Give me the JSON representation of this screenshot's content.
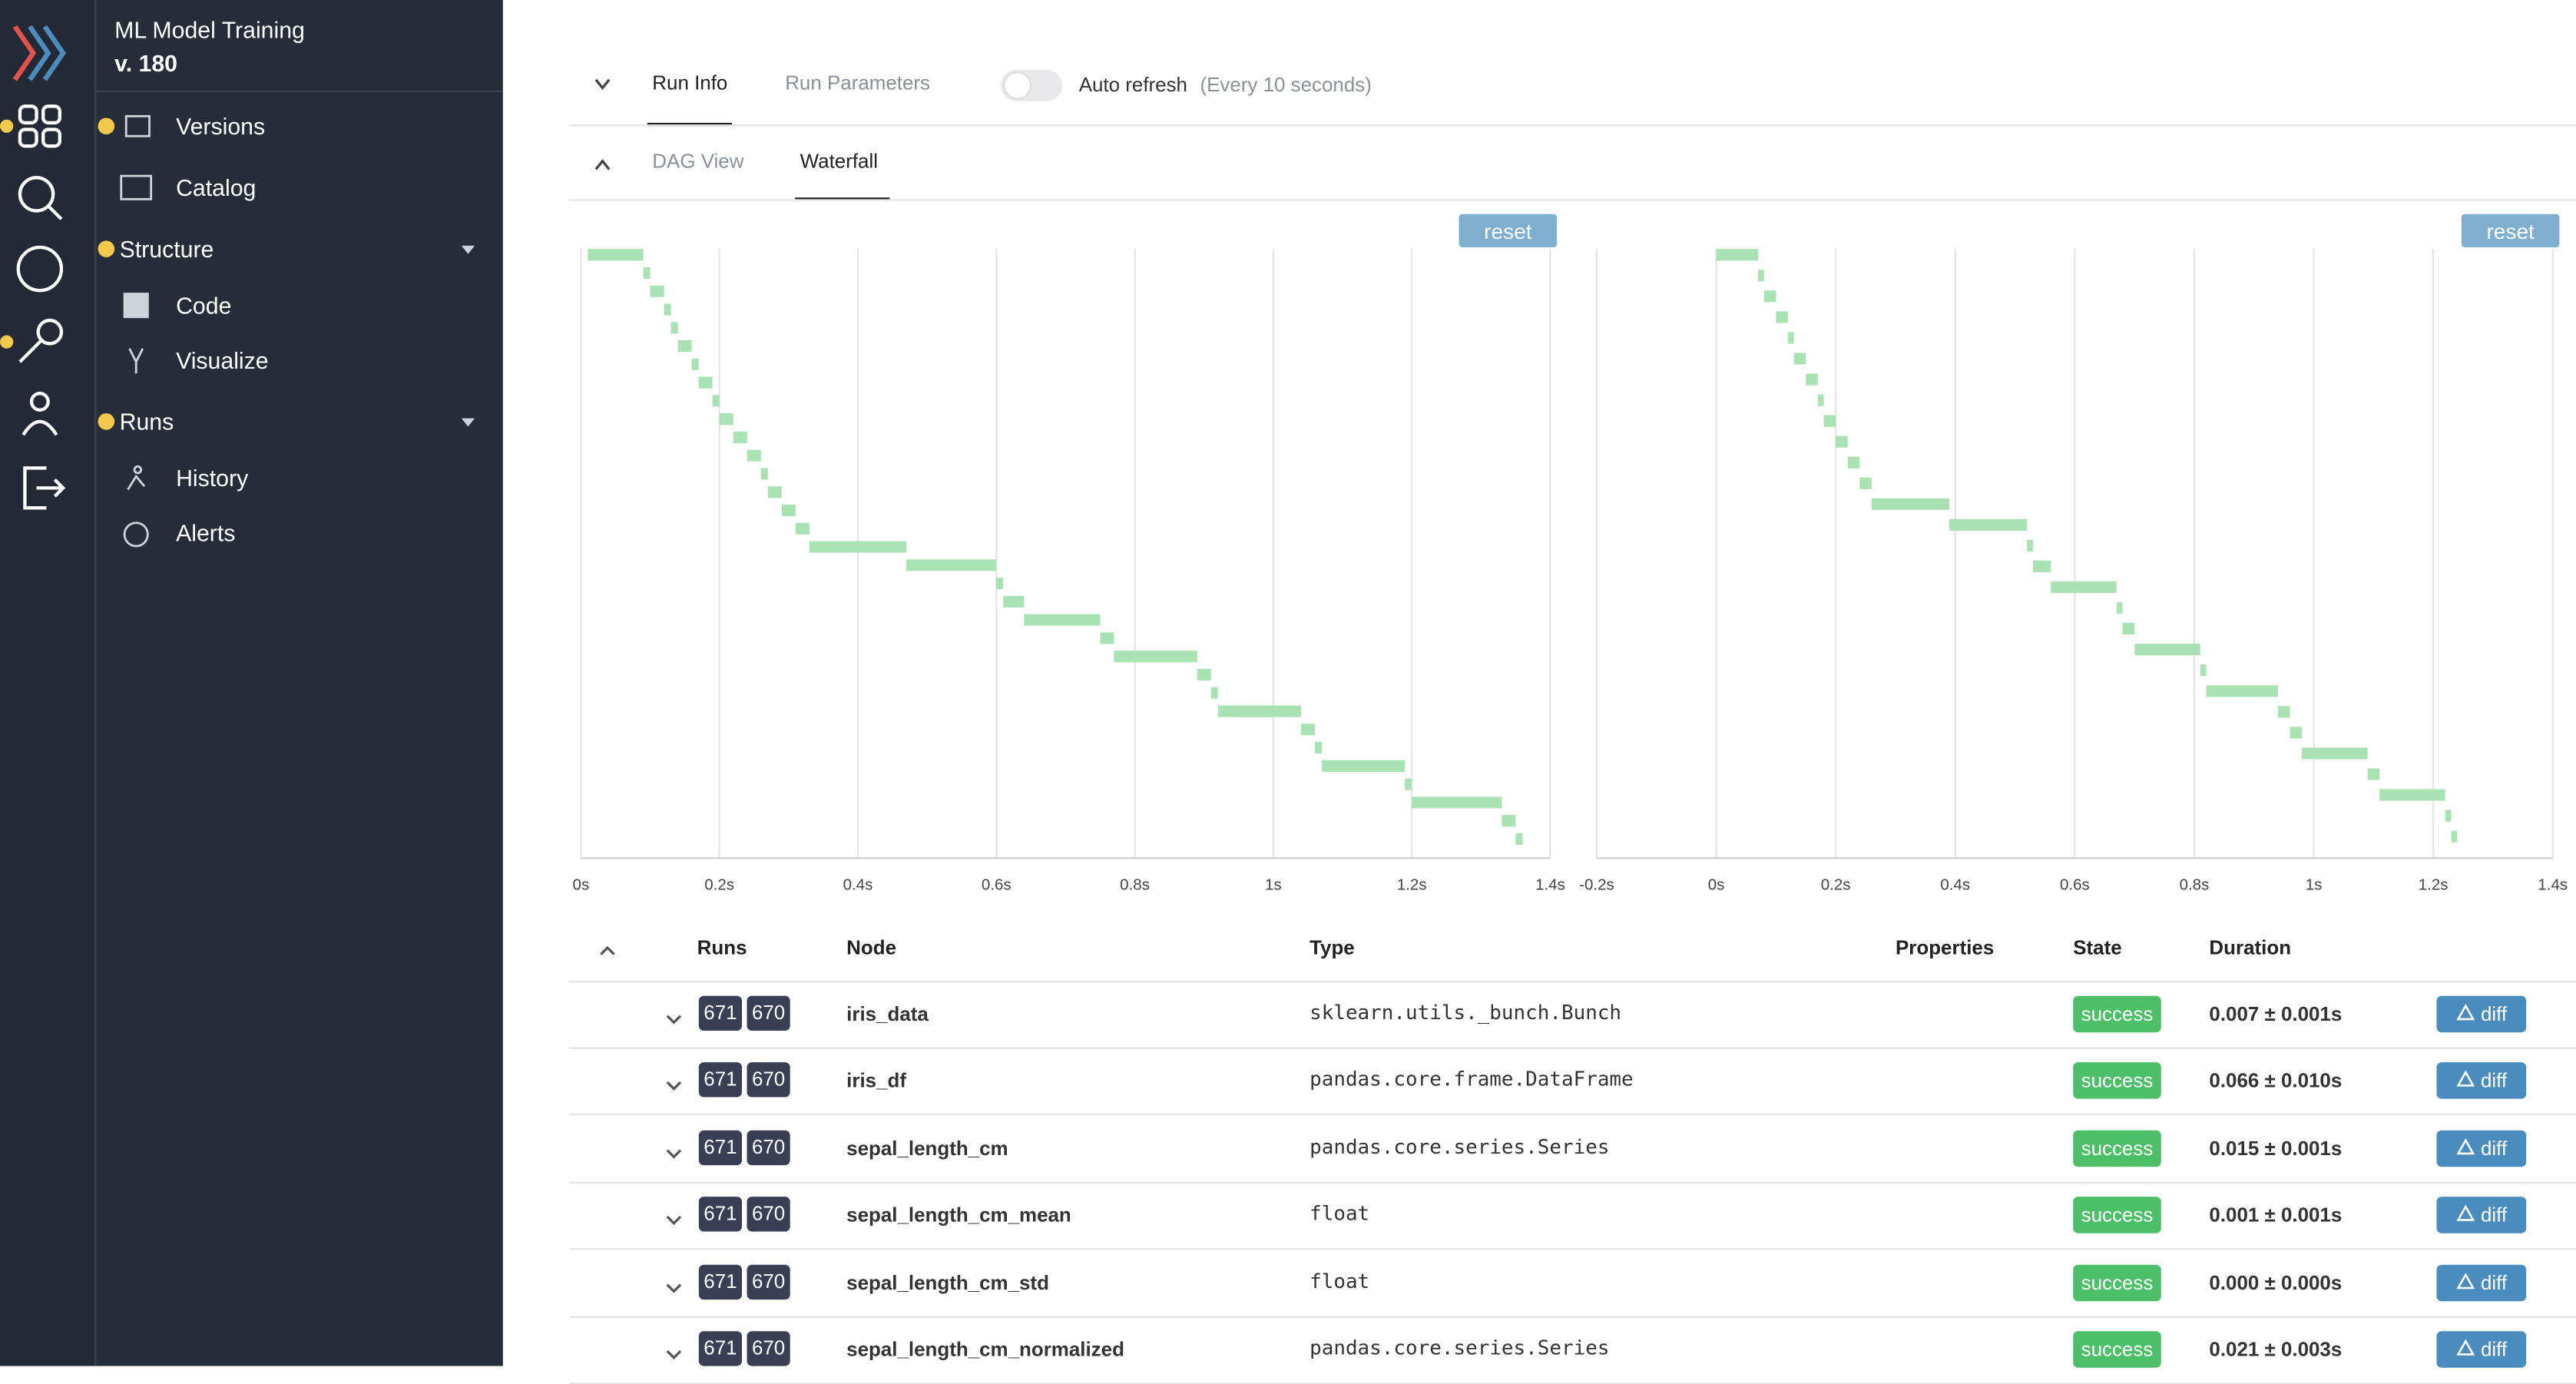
{
  "sidebar": {
    "title": "ML Model Training",
    "version": "v. 180",
    "items": [
      "Versions",
      "Catalog",
      "Structure",
      "Code",
      "Visualize",
      "Runs",
      "History",
      "Alerts"
    ]
  },
  "tabs": {
    "top": [
      "Run Info",
      "Run Parameters"
    ],
    "auto_refresh": "Auto refresh",
    "auto_refresh_note": "(Every 10 seconds)",
    "views": [
      "DAG View",
      "Waterfall"
    ],
    "reset": "reset"
  },
  "chart_data": [
    {
      "type": "waterfall",
      "color": "#a9e2b3",
      "grid": true,
      "xlim": [
        0,
        1.4
      ],
      "xticks": [
        {
          "value": 0,
          "label": "0s"
        },
        {
          "value": 0.2,
          "label": "0.2s"
        },
        {
          "value": 0.4,
          "label": "0.4s"
        },
        {
          "value": 0.6,
          "label": "0.6s"
        },
        {
          "value": 0.8,
          "label": "0.8s"
        },
        {
          "value": 1,
          "label": "1s"
        },
        {
          "value": 1.2,
          "label": "1.2s"
        },
        {
          "value": 1.4,
          "label": "1.4s"
        }
      ],
      "starts": [
        0.01,
        0.09,
        0.1,
        0.12,
        0.13,
        0.14,
        0.16,
        0.17,
        0.19,
        0.2,
        0.22,
        0.24,
        0.26,
        0.27,
        0.29,
        0.31,
        0.33,
        0.47,
        0.6,
        0.61,
        0.64,
        0.75,
        0.77,
        0.89,
        0.91,
        0.92,
        1.04,
        1.06,
        1.07,
        1.19,
        1.2,
        1.33,
        1.35
      ],
      "ends": [
        0.09,
        0.1,
        0.12,
        0.13,
        0.14,
        0.16,
        0.17,
        0.19,
        0.2,
        0.22,
        0.24,
        0.26,
        0.27,
        0.29,
        0.31,
        0.33,
        0.47,
        0.6,
        0.61,
        0.64,
        0.75,
        0.77,
        0.89,
        0.91,
        0.92,
        1.04,
        1.06,
        1.07,
        1.19,
        1.2,
        1.33,
        1.35,
        1.36
      ]
    },
    {
      "type": "waterfall",
      "color": "#a9e2b3",
      "grid": true,
      "xlim": [
        -0.2,
        1.4
      ],
      "xticks": [
        {
          "value": -0.2,
          "label": "-0.2s"
        },
        {
          "value": 0,
          "label": "0s"
        },
        {
          "value": 0.2,
          "label": "0.2s"
        },
        {
          "value": 0.4,
          "label": "0.4s"
        },
        {
          "value": 0.6,
          "label": "0.6s"
        },
        {
          "value": 0.8,
          "label": "0.8s"
        },
        {
          "value": 1,
          "label": "1s"
        },
        {
          "value": 1.2,
          "label": "1.2s"
        },
        {
          "value": 1.4,
          "label": "1.4s"
        }
      ],
      "starts": [
        0,
        0.07,
        0.08,
        0.1,
        0.12,
        0.13,
        0.15,
        0.17,
        0.18,
        0.2,
        0.22,
        0.24,
        0.26,
        0.39,
        0.52,
        0.53,
        0.56,
        0.67,
        0.68,
        0.7,
        0.81,
        0.82,
        0.94,
        0.96,
        0.98,
        1.09,
        1.11,
        1.22,
        1.23
      ],
      "ends": [
        0.07,
        0.08,
        0.1,
        0.12,
        0.13,
        0.15,
        0.17,
        0.18,
        0.2,
        0.22,
        0.24,
        0.26,
        0.39,
        0.52,
        0.53,
        0.56,
        0.67,
        0.68,
        0.7,
        0.81,
        0.82,
        0.94,
        0.96,
        0.98,
        1.09,
        1.11,
        1.22,
        1.23,
        1.24
      ]
    }
  ],
  "table": {
    "headers": [
      "Runs",
      "Node",
      "Type",
      "Properties",
      "State",
      "Duration"
    ],
    "rows": [
      {
        "runs": [
          671,
          670
        ],
        "node": "iris_data",
        "type": "sklearn.utils._bunch.Bunch",
        "state": "success",
        "duration": "0.007 ± 0.001s",
        "action": "diff"
      },
      {
        "runs": [
          671,
          670
        ],
        "node": "iris_df",
        "type": "pandas.core.frame.DataFrame",
        "state": "success",
        "duration": "0.066 ± 0.010s",
        "action": "diff"
      },
      {
        "runs": [
          671,
          670
        ],
        "node": "sepal_length_cm",
        "type": "pandas.core.series.Series",
        "state": "success",
        "duration": "0.015 ± 0.001s",
        "action": "diff"
      },
      {
        "runs": [
          671,
          670
        ],
        "node": "sepal_length_cm_mean",
        "type": "float",
        "state": "success",
        "duration": "0.001 ± 0.001s",
        "action": "diff"
      },
      {
        "runs": [
          671,
          670
        ],
        "node": "sepal_length_cm_std",
        "type": "float",
        "state": "success",
        "duration": "0.000 ± 0.000s",
        "action": "diff"
      },
      {
        "runs": [
          671,
          670
        ],
        "node": "sepal_length_cm_normalized",
        "type": "pandas.core.series.Series",
        "state": "success",
        "duration": "0.021 ± 0.003s",
        "action": "diff"
      }
    ]
  }
}
